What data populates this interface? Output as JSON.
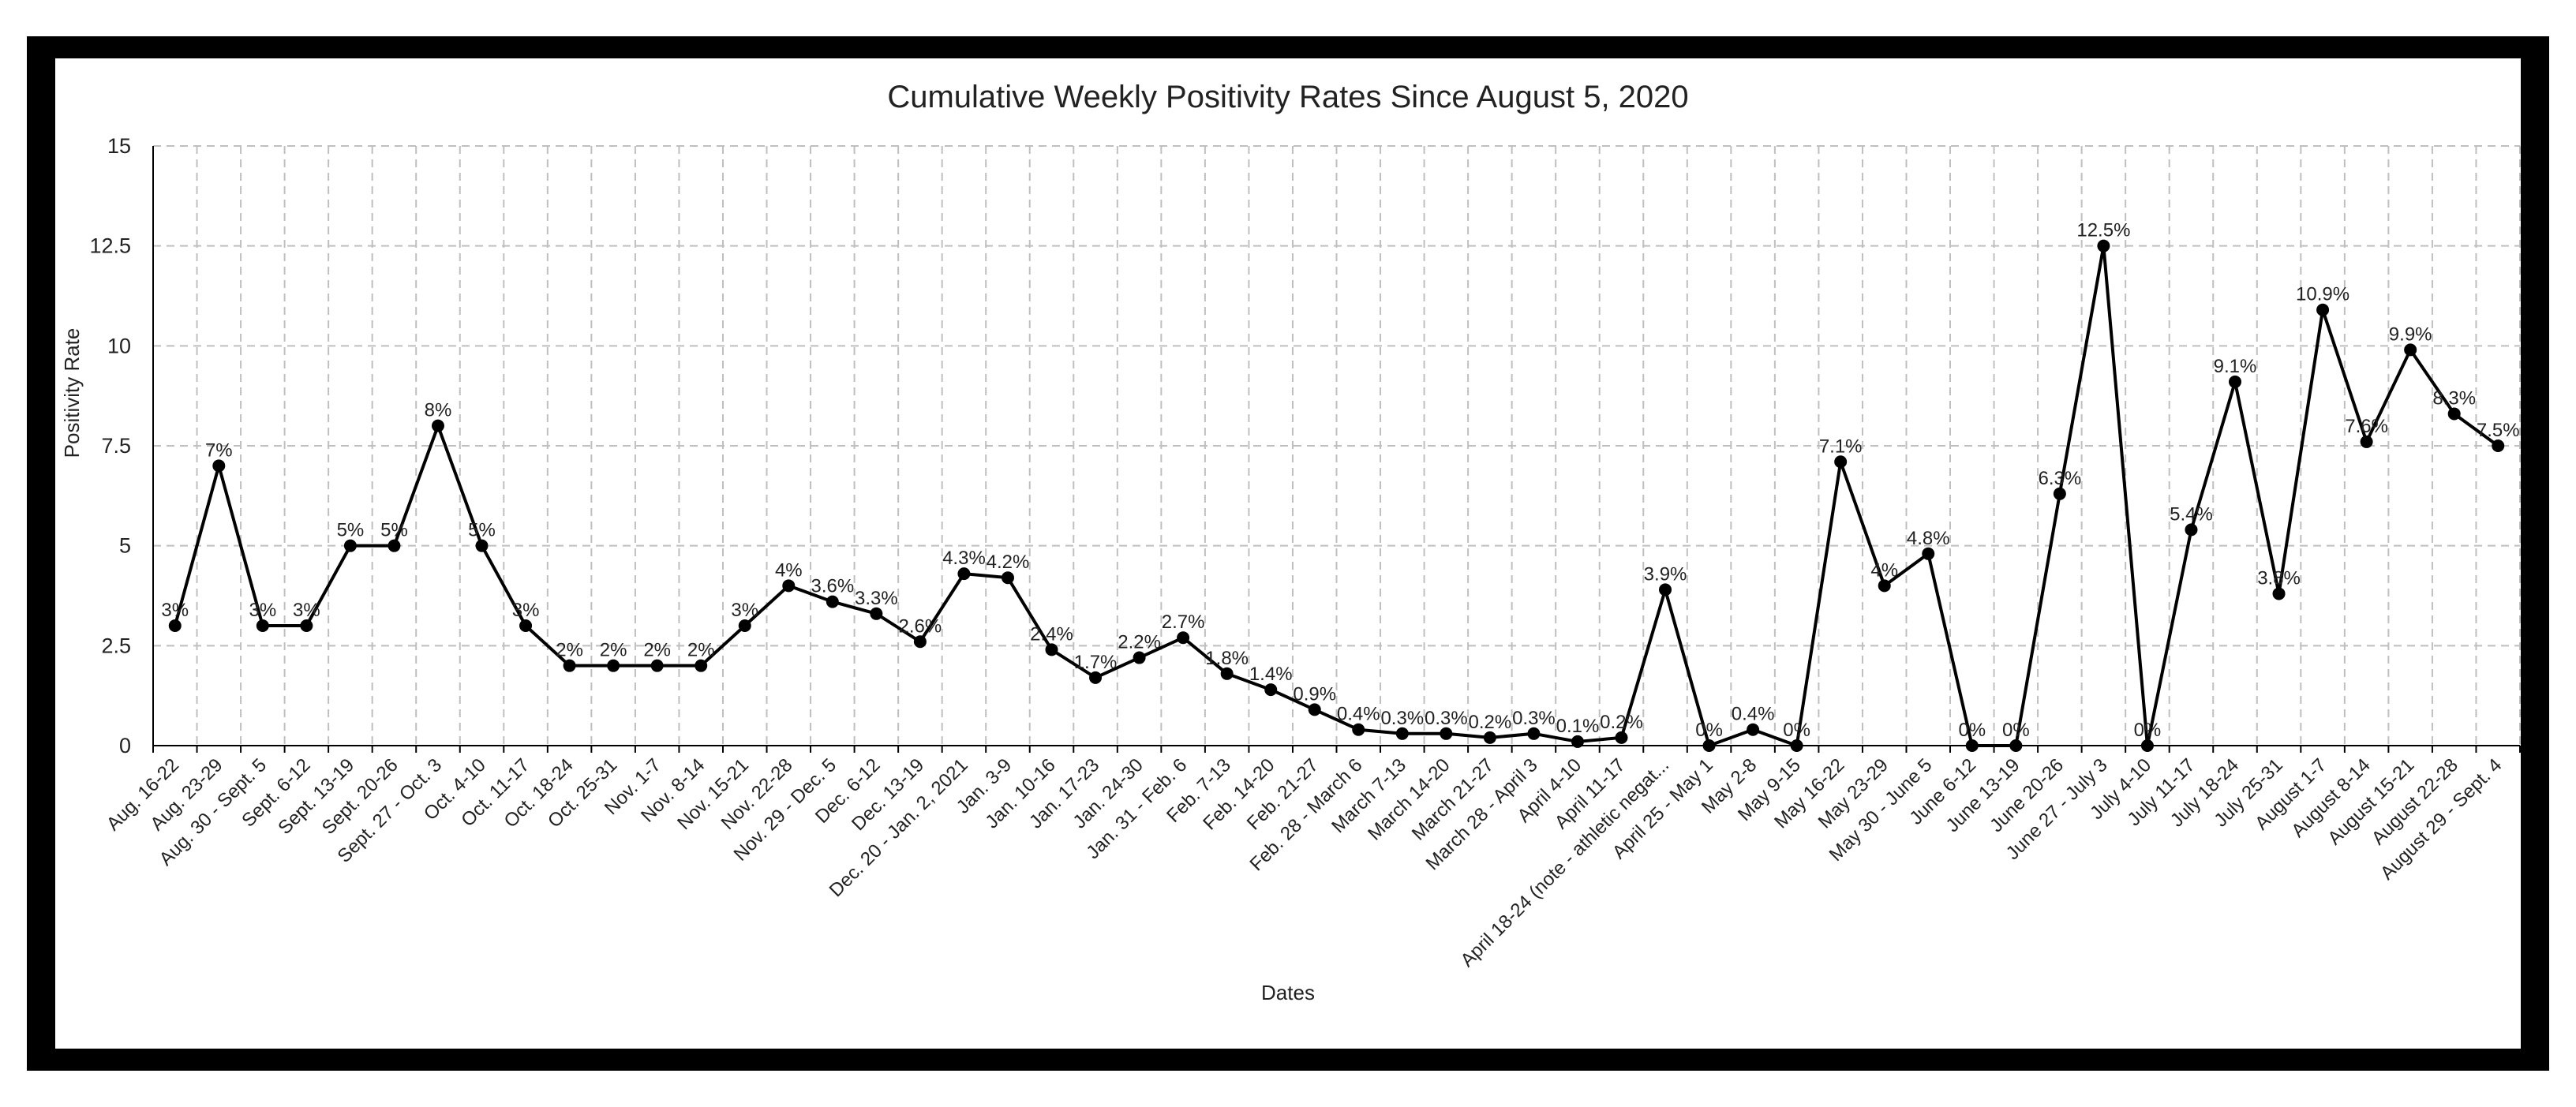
{
  "chart_data": {
    "type": "line",
    "title": "Cumulative Weekly Positivity Rates Since August 5, 2020",
    "xlabel": "Dates",
    "ylabel": "Positivity Rate",
    "ylim": [
      0,
      15
    ],
    "yticks": [
      "0",
      "2.5",
      "5",
      "7.5",
      "10",
      "12.5",
      "15"
    ],
    "grid": true,
    "categories": [
      "Aug. 16-22",
      "Aug. 23-29",
      "Aug. 30 - Sept. 5",
      "Sept. 6-12",
      "Sept. 13-19",
      "Sept. 20-26",
      "Sept. 27 - Oct. 3",
      "Oct. 4-10",
      "Oct. 11-17",
      "Oct. 18-24",
      "Oct. 25-31",
      "Nov. 1-7",
      "Nov. 8-14",
      "Nov. 15-21",
      "Nov. 22-28",
      "Nov. 29 - Dec. 5",
      "Dec. 6-12",
      "Dec. 13-19",
      "Dec. 20 - Jan. 2, 2021",
      "Jan. 3-9",
      "Jan. 10-16",
      "Jan. 17-23",
      "Jan. 24-30",
      "Jan. 31 - Feb. 6",
      "Feb. 7-13",
      "Feb. 14-20",
      "Feb. 21-27",
      "Feb. 28 - March 6",
      "March 7-13",
      "March 14-20",
      "March 21-27",
      "March 28 - April 3",
      "April 4-10",
      "April 11-17",
      "April 18-24 (note - athletic negat...",
      "April 25 - May 1",
      "May 2-8",
      "May 9-15",
      "May 16-22",
      "May 23-29",
      "May 30 - June 5",
      "June 6-12",
      "June 13-19",
      "June 20-26",
      "June 27 - July 3",
      "July 4-10",
      "July 11-17",
      "July 18-24",
      "July 25-31",
      "August 1-7",
      "August 8-14",
      "August 15-21",
      "August 22-28",
      "August 29 - Sept. 4"
    ],
    "values": [
      3,
      7,
      3,
      3,
      5,
      5,
      8,
      5,
      3,
      2,
      2,
      2,
      2,
      3,
      4,
      3.6,
      3.3,
      2.6,
      4.3,
      4.2,
      2.4,
      1.7,
      2.2,
      2.7,
      1.8,
      1.4,
      0.9,
      0.4,
      0.3,
      0.3,
      0.2,
      0.3,
      0.1,
      0.2,
      3.9,
      0,
      0.4,
      0,
      7.1,
      4,
      4.8,
      0,
      0,
      6.3,
      12.5,
      0,
      5.4,
      9.1,
      3.8,
      10.9,
      7.6,
      9.9,
      8.3,
      7.5
    ],
    "data_labels": [
      "3%",
      "7%",
      "3%",
      "3%",
      "5%",
      "5%",
      "8%",
      "5%",
      "3%",
      "2%",
      "2%",
      "2%",
      "2%",
      "3%",
      "4%",
      "3.6%",
      "3.3%",
      "2.6%",
      "4.3%",
      "4.2%",
      "2.4%",
      "1.7%",
      "2.2%",
      "2.7%",
      "1.8%",
      "1.4%",
      "0.9%",
      "0.4%",
      "0.3%",
      "0.3%",
      "0.2%",
      "0.3%",
      "0.1%",
      "0.2%",
      "3.9%",
      "0%",
      "0.4%",
      "0%",
      "7.1%",
      "4%",
      "4.8%",
      "0%",
      "0%",
      "6.3%",
      "12.5%",
      "0%",
      "5.4%",
      "9.1%",
      "3.8%",
      "10.9%",
      "7.6%",
      "9.9%",
      "8.3%",
      "7.5%"
    ],
    "colors": {
      "line": "#000000",
      "grid": "#bfbfbf",
      "frame": "#000000"
    }
  }
}
